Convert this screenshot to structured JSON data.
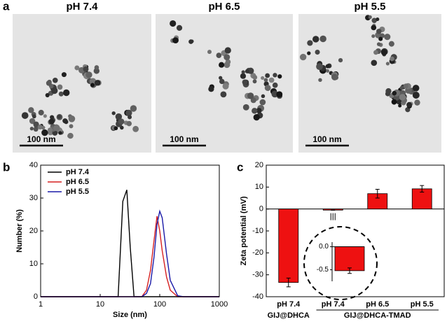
{
  "panel_a": {
    "label": "a",
    "images": [
      {
        "title": "pH 7.4",
        "scale": "100 nm"
      },
      {
        "title": "pH 6.5",
        "scale": "100 nm"
      },
      {
        "title": "pH 5.5",
        "scale": "100 nm"
      }
    ]
  },
  "chart_data": [
    {
      "type": "line",
      "panel_label": "b",
      "xlabel": "Size (nm)",
      "ylabel": "Number (%)",
      "log_x": true,
      "legend": "upper left",
      "x": [
        1,
        20,
        24,
        28,
        32,
        37,
        50,
        60,
        70,
        80,
        90,
        100,
        110,
        130,
        150,
        200,
        250,
        1000
      ],
      "xlim": [
        1,
        1000
      ],
      "xticks": [
        1,
        10,
        100,
        1000
      ],
      "ylim": [
        0,
        40
      ],
      "yticks": [
        0,
        10,
        20,
        30,
        40
      ],
      "series": [
        {
          "name": "pH 7.4",
          "color": "#000000",
          "values": [
            0,
            0,
            29,
            32.5,
            15,
            0,
            0,
            0,
            0,
            0,
            0,
            0,
            0,
            0,
            0,
            0,
            0,
            0
          ]
        },
        {
          "name": "pH 6.5",
          "color": "#d62020",
          "values": [
            0,
            0,
            0,
            0,
            0,
            0,
            0,
            2,
            8,
            17,
            24.5,
            20,
            14,
            6,
            2,
            0,
            0,
            0
          ]
        },
        {
          "name": "pH 5.5",
          "color": "#1a1aa8",
          "values": [
            0,
            0,
            0,
            0,
            0,
            0,
            0,
            1,
            4,
            12,
            22,
            26,
            24,
            13,
            5,
            0.3,
            0,
            0
          ]
        }
      ]
    },
    {
      "type": "bar",
      "panel_label": "c",
      "ylabel": "Zeta potential (mV)",
      "color": "#ee1111",
      "categories": [
        "pH 7.4",
        "pH 7.4",
        "pH 6.5",
        "pH 5.5"
      ],
      "groups": [
        {
          "name": "GIJ@DHCA",
          "span": [
            0,
            0
          ]
        },
        {
          "name": "GIJ@DHCA-TMAD",
          "span": [
            1,
            3
          ]
        }
      ],
      "values": [
        -33.5,
        -0.52,
        7,
        9.2
      ],
      "errors": [
        2,
        0.06,
        2,
        1.5
      ],
      "ylim": [
        -40,
        20
      ],
      "yticks": [
        -40,
        -30,
        -20,
        -10,
        0,
        10,
        20
      ],
      "inset": {
        "ylim": [
          -0.75,
          0.1
        ],
        "yticks": [
          {
            "value": 0,
            "label": "0.0"
          },
          -0.5
        ]
      }
    }
  ]
}
